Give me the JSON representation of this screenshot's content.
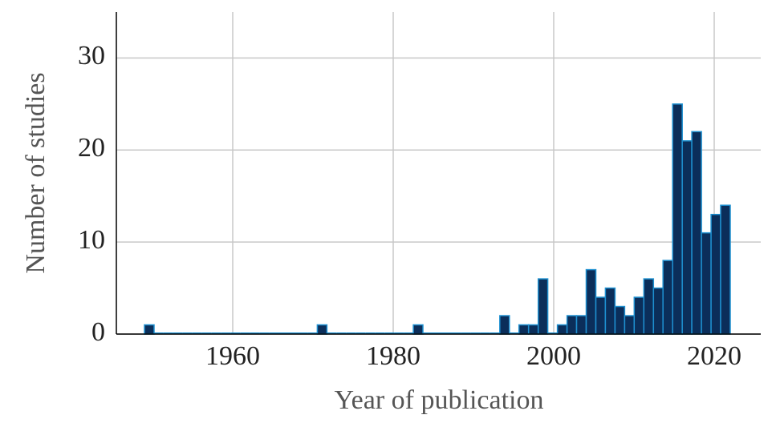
{
  "chart_data": {
    "type": "histogram",
    "xlabel": "Year of publication",
    "ylabel": "Number of studies",
    "bins": [
      1949,
      1950.2,
      1951.39,
      1952.59,
      1953.79,
      1954.98,
      1956.18,
      1957.38,
      1958.57,
      1959.77,
      1960.97,
      1962.16,
      1963.36,
      1964.56,
      1965.75,
      1966.95,
      1968.15,
      1969.34,
      1970.54,
      1971.74,
      1972.93,
      1974.13,
      1975.33,
      1976.52,
      1977.72,
      1978.92,
      1980.11,
      1981.31,
      1982.51,
      1983.7,
      1984.9,
      1986.1,
      1987.3,
      1988.49,
      1989.69,
      1990.89,
      1992.08,
      1993.28,
      1994.48,
      1995.67,
      1996.87,
      1998.07,
      1999.26,
      2000.46,
      2001.66,
      2002.85,
      2004.05,
      2005.25,
      2006.44,
      2007.64,
      2008.84,
      2010.03,
      2011.23,
      2012.43,
      2013.62,
      2014.82,
      2016.02,
      2017.21,
      2018.41,
      2019.61,
      2020.8,
      2022
    ],
    "values": [
      1,
      0,
      0,
      0,
      0,
      0,
      0,
      0,
      0,
      0,
      0,
      0,
      0,
      0,
      0,
      0,
      0,
      0,
      1,
      0,
      0,
      0,
      0,
      0,
      0,
      0,
      0,
      0,
      1,
      0,
      0,
      0,
      0,
      0,
      0,
      0,
      0,
      2,
      0,
      1,
      1,
      6,
      0,
      1,
      2,
      2,
      7,
      4,
      5,
      3,
      2,
      4,
      6,
      5,
      8,
      25,
      21,
      22,
      11,
      13,
      14
    ],
    "color": "#0b2e5a",
    "edgecolor": "#1e90d0",
    "xlim": [
      1945.5,
      2025.8
    ],
    "xticks": [
      1960,
      1980,
      2000,
      2020
    ],
    "ylim": [
      0,
      35
    ],
    "yticks": [
      0,
      10,
      20,
      30
    ],
    "grid": true
  }
}
